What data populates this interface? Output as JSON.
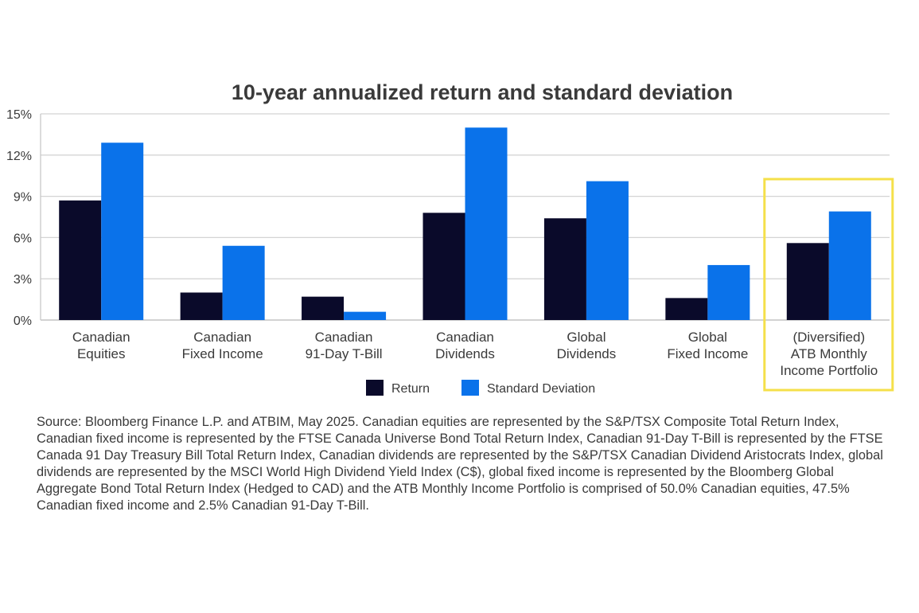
{
  "chart_data": {
    "type": "bar",
    "title": "10-year annualized return and standard deviation",
    "xlabel": "",
    "ylabel": "",
    "ylim": [
      0,
      15
    ],
    "yticks": [
      0,
      3,
      6,
      9,
      12,
      15
    ],
    "ytick_labels": [
      "0%",
      "3%",
      "6%",
      "9%",
      "12%",
      "15%"
    ],
    "grid": true,
    "categories": [
      [
        "Canadian",
        "Equities"
      ],
      [
        "Canadian",
        "Fixed Income"
      ],
      [
        "Canadian",
        "91-Day T-Bill"
      ],
      [
        "Canadian",
        "Dividends"
      ],
      [
        "Global",
        "Dividends"
      ],
      [
        "Global",
        "Fixed Income"
      ],
      [
        "(Diversified)",
        "ATB Monthly",
        "Income Portfolio"
      ]
    ],
    "series": [
      {
        "name": "Return",
        "color": "#0a0a2a",
        "values": [
          8.7,
          2.0,
          1.7,
          7.8,
          7.4,
          1.6,
          5.6
        ]
      },
      {
        "name": "Standard Deviation",
        "color": "#0a72ea",
        "values": [
          12.9,
          5.4,
          0.6,
          14.0,
          10.1,
          4.0,
          7.9
        ]
      }
    ],
    "highlight_category_index": 6,
    "highlight_color": "#f5e04a",
    "legend_position": "bottom-center"
  },
  "source_note": "Source: Bloomberg Finance L.P. and ATBIM, May 2025. Canadian equities are represented by the S&P/TSX Composite Total Return Index, Canadian fixed income is represented by the FTSE Canada Universe Bond Total Return Index, Canadian 91-Day T-Bill is represented by the FTSE Canada 91 Day Treasury Bill Total Return Index, Canadian dividends are represented by the S&P/TSX Canadian Dividend Aristocrats Index, global dividends are represented by the MSCI World High Dividend Yield Index (C$), global fixed income is represented by the Bloomberg Global Aggregate Bond Total Return Index (Hedged to CAD) and the ATB Monthly Income Portfolio is comprised of 50.0% Canadian equities, 47.5% Canadian fixed income and 2.5% Canadian 91-Day T-Bill."
}
